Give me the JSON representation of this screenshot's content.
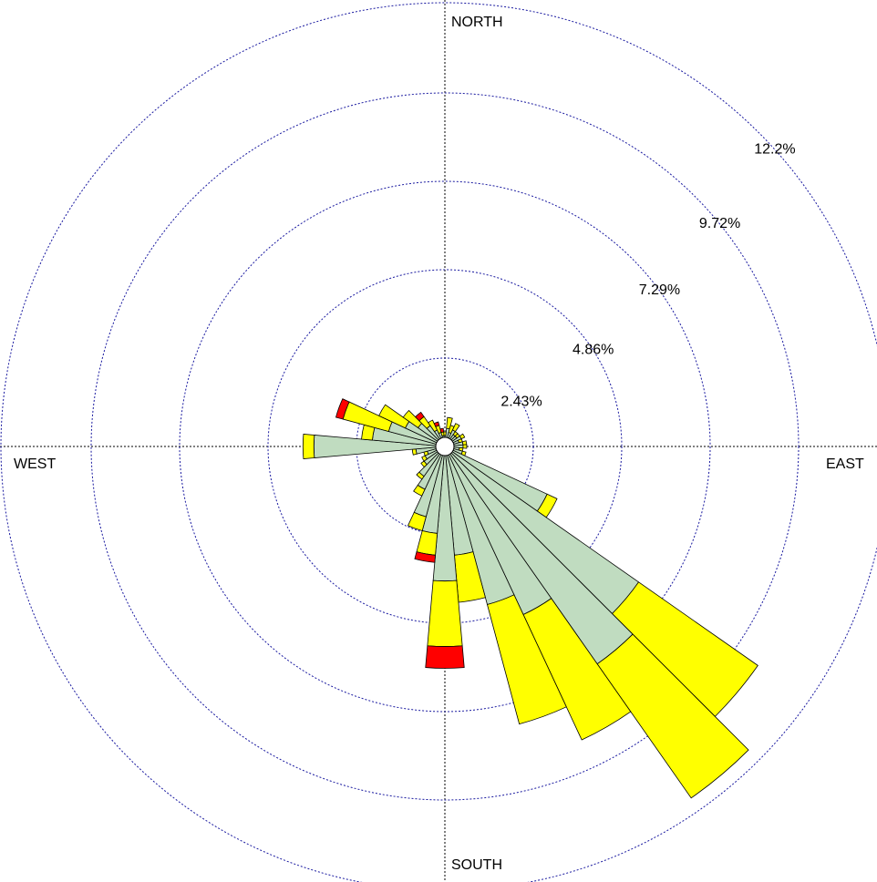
{
  "chart_data": {
    "type": "windrose",
    "direction_labels": [
      "NORTH",
      "EAST",
      "SOUTH",
      "WEST"
    ],
    "x": [
      0,
      10,
      20,
      30,
      40,
      50,
      60,
      70,
      80,
      90,
      100,
      110,
      120,
      130,
      140,
      150,
      160,
      170,
      180,
      190,
      200,
      210,
      220,
      230,
      240,
      250,
      260,
      270,
      280,
      290,
      300,
      310,
      320,
      330,
      340,
      350
    ],
    "series": [
      {
        "color": "#c0dcc0",
        "values": [
          0.3,
          0.5,
          0.4,
          0.5,
          0.4,
          0.4,
          0.5,
          0.4,
          0.5,
          0.5,
          0.4,
          0.5,
          3.1,
          6.5,
          7.3,
          5.1,
          4.5,
          3.0,
          3.7,
          2.4,
          2.0,
          1.3,
          1.0,
          0.7,
          0.6,
          0.5,
          0.8,
          3.6,
          2.0,
          1.6,
          1.2,
          0.9,
          0.7,
          0.5,
          0.4,
          0.3
        ]
      },
      {
        "color": "#ffff00",
        "values": [
          0.1,
          0.3,
          0.2,
          0.2,
          0.1,
          0.1,
          0.1,
          0.1,
          0.1,
          0.1,
          0.1,
          0.1,
          0.3,
          4.0,
          4.5,
          3.8,
          3.4,
          1.3,
          1.8,
          0.6,
          0.4,
          0.2,
          0.1,
          0.1,
          0.1,
          0.1,
          0.1,
          0.3,
          0.3,
          1.3,
          0.8,
          0.5,
          0.3,
          0.3,
          0.2,
          0.1
        ]
      },
      {
        "color": "#ff0000",
        "values": [
          0,
          0,
          0,
          0,
          0,
          0,
          0,
          0,
          0,
          0,
          0,
          0,
          0,
          0,
          0,
          0,
          0,
          0,
          0.6,
          0.2,
          0,
          0,
          0,
          0,
          0,
          0,
          0,
          0,
          0,
          0.2,
          0,
          0,
          0.15,
          0,
          0.1,
          0.1
        ]
      }
    ],
    "ylim": [
      0,
      12.2
    ],
    "yticks": [
      {
        "value": 2.43,
        "label": "2.43%"
      },
      {
        "value": 4.86,
        "label": "4.86%"
      },
      {
        "value": 7.29,
        "label": "7.29%"
      },
      {
        "value": 9.72,
        "label": "9.72%"
      },
      {
        "value": 12.2,
        "label": "12.2%"
      }
    ],
    "grid": true
  }
}
